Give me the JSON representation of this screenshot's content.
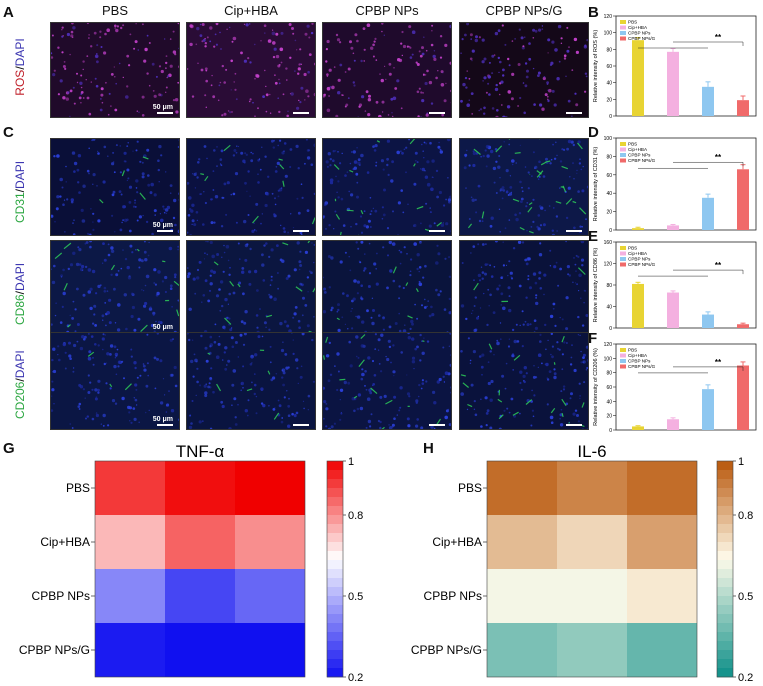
{
  "panels": {
    "A": "A",
    "B": "B",
    "C": "C",
    "D": "D",
    "E": "E",
    "F": "F",
    "G": "G",
    "H": "H"
  },
  "columns": [
    "PBS",
    "Cip+HBA",
    "CPBP NPs",
    "CPBP NPs/G"
  ],
  "rows": [
    {
      "first": "ROS",
      "sep": "/",
      "second": "DAPI",
      "first_color": "#c0202a",
      "second_color": "#3a34b0",
      "tint": "ros"
    },
    {
      "first": "CD31",
      "sep": "/",
      "second": "DAPI",
      "first_color": "#2aa640",
      "second_color": "#3a34b0",
      "tint": "cd31"
    },
    {
      "first": "CD86",
      "sep": "/",
      "second": "DAPI",
      "first_color": "#2aa640",
      "second_color": "#3a34b0",
      "tint": "cd86"
    },
    {
      "first": "CD206",
      "sep": "/",
      "second": "DAPI",
      "first_color": "#2aa640",
      "second_color": "#3a34b0",
      "tint": "cd206"
    }
  ],
  "scale_bar_label": "50 μm",
  "bar_charts": [
    {
      "id": "B",
      "ylabel": "Relative intensity of ROS (%)",
      "ymax": 120,
      "ticks": [
        0,
        20,
        40,
        60,
        80,
        100,
        120
      ],
      "values": [
        91,
        77,
        35,
        19
      ],
      "errors": [
        3,
        4,
        6,
        5
      ],
      "sig": "**",
      "sig_from": 1,
      "sig_to": 3
    },
    {
      "id": "D",
      "ylabel": "Relative intensity of CD31 (%)",
      "ymax": 100,
      "ticks": [
        0,
        20,
        40,
        60,
        80,
        100
      ],
      "values": [
        2,
        5,
        35,
        66
      ],
      "errors": [
        1,
        1,
        4,
        5
      ],
      "sig": "**",
      "sig_from": 1,
      "sig_to": 3
    },
    {
      "id": "E",
      "ylabel": "Relative intensity of CD86 (%)",
      "ymax": 160,
      "ticks": [
        0,
        40,
        80,
        120,
        160
      ],
      "values": [
        82,
        66,
        25,
        7
      ],
      "errors": [
        3,
        3,
        5,
        2
      ],
      "sig": "**",
      "sig_from": 1,
      "sig_to": 3
    },
    {
      "id": "F",
      "ylabel": "Relative intensity of CD206 (%)",
      "ymax": 120,
      "ticks": [
        0,
        20,
        40,
        60,
        80,
        100,
        120
      ],
      "values": [
        5,
        15,
        57,
        90
      ],
      "errors": [
        1,
        2,
        6,
        5
      ],
      "sig": "**",
      "sig_from": 1,
      "sig_to": 3
    }
  ],
  "bar_legend": [
    "PBS",
    "Cip+HBA",
    "CPBP NPs",
    "CPBP NPs/G"
  ],
  "bar_colors": [
    "#e8d433",
    "#f4b0e0",
    "#8ec7f0",
    "#f06a6a"
  ],
  "chart_data": [
    {
      "type": "heatmap",
      "title": "TNF-α",
      "rows": [
        "PBS",
        "Cip+HBA",
        "CPBP NPs",
        "CPBP NPs/G"
      ],
      "values": [
        [
          0.92,
          0.98,
          1.0
        ],
        [
          0.74,
          0.86,
          0.8
        ],
        [
          0.42,
          0.3,
          0.36
        ],
        [
          0.22,
          0.2,
          0.2
        ]
      ],
      "colorbar_ticks": [
        "1",
        "0.8",
        "0.5",
        "0.2"
      ],
      "colorbar_tick_values": [
        1,
        0.8,
        0.5,
        0.2
      ],
      "vmin": 0.2,
      "vmax": 1,
      "colors": {
        "low": "#1010f0",
        "mid": "#ffffff",
        "high": "#f00000"
      }
    },
    {
      "type": "heatmap",
      "title": "IL-6",
      "rows": [
        "PBS",
        "Cip+HBA",
        "CPBP NPs",
        "CPBP NPs/G"
      ],
      "values": [
        [
          0.95,
          0.9,
          0.95
        ],
        [
          0.78,
          0.72,
          0.84
        ],
        [
          0.62,
          0.62,
          0.68
        ],
        [
          0.4,
          0.44,
          0.36
        ]
      ],
      "colorbar_ticks": [
        "1",
        "0.8",
        "0.5",
        "0.2"
      ],
      "colorbar_tick_values": [
        1,
        0.8,
        0.5,
        0.2
      ],
      "vmin": 0.2,
      "vmax": 1,
      "colors": {
        "low": "#0d8f88",
        "mid": "#fffbea",
        "high": "#b8560a"
      }
    }
  ]
}
